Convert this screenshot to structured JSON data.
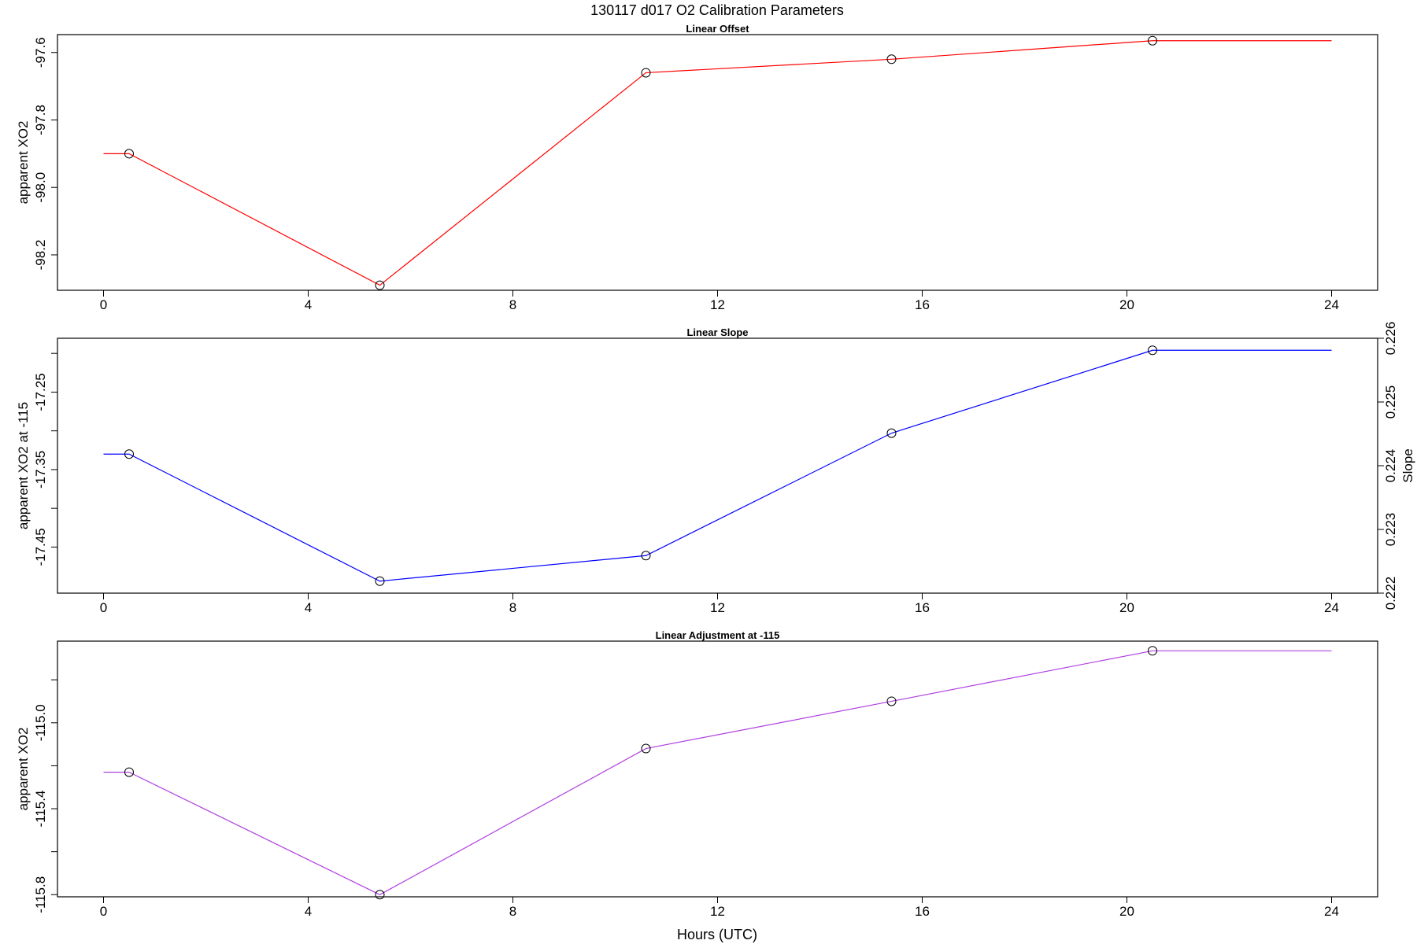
{
  "figure": {
    "title": "130117   d017   O2 Calibration Parameters",
    "xlabel": "Hours (UTC)"
  },
  "chart_data": [
    {
      "type": "line",
      "title": "Linear Offset",
      "ylabel": "apparent XO2",
      "color": "#ff0000",
      "x_ticks": [
        0,
        4,
        8,
        12,
        16,
        20,
        24
      ],
      "xlim": [
        -0.9,
        24.9
      ],
      "ylim": [
        -98.305,
        -97.547
      ],
      "y_ticks": [
        -98.2,
        -98.0,
        -97.8,
        -97.6
      ],
      "y_tick_labels": [
        "-98.2",
        "-98.0",
        "-97.8",
        "-97.6"
      ],
      "x": [
        0.5,
        5.4,
        10.6,
        15.4,
        20.5
      ],
      "values": [
        -97.9,
        -98.29,
        -97.66,
        -97.62,
        -97.565
      ],
      "line_x": [
        0,
        0.5,
        5.4,
        10.6,
        15.4,
        20.5,
        24
      ],
      "line_values": [
        -97.9,
        -97.9,
        -98.29,
        -97.66,
        -97.62,
        -97.565,
        -97.565
      ]
    },
    {
      "type": "line",
      "title": "Linear Slope",
      "ylabel": "apparent XO2 at -115",
      "y2label": "Slope",
      "color": "#0000ff",
      "x_ticks": [
        0,
        4,
        8,
        12,
        16,
        20,
        24
      ],
      "xlim": [
        -0.9,
        24.9
      ],
      "ylim": [
        -17.5095,
        -17.1805
      ],
      "y_ticks": [
        -17.45,
        -17.35,
        -17.25
      ],
      "y_tick_labels": [
        "-17.45",
        "-17.35",
        "-17.25"
      ],
      "y_minor_ticks": [
        -17.4,
        -17.3,
        -17.2
      ],
      "y2lim": [
        0.222,
        0.226
      ],
      "y2_ticks": [
        0.222,
        0.223,
        0.224,
        0.225,
        0.226
      ],
      "y2_tick_labels": [
        "0.222",
        "0.223",
        "0.224",
        "0.225",
        "0.226"
      ],
      "x": [
        0.5,
        5.4,
        10.6,
        15.4,
        20.5
      ],
      "values": [
        -17.33,
        -17.494,
        -17.461,
        -17.303,
        -17.196
      ],
      "line_x": [
        0,
        0.5,
        5.4,
        10.6,
        15.4,
        20.5,
        24
      ],
      "line_values": [
        -17.33,
        -17.33,
        -17.494,
        -17.461,
        -17.303,
        -17.196,
        -17.196
      ]
    },
    {
      "type": "line",
      "title": "Linear Adjustment at -115",
      "ylabel": "apparent XO2",
      "color": "#b040e0",
      "x_ticks": [
        0,
        4,
        8,
        12,
        16,
        20,
        24
      ],
      "xlim": [
        -0.9,
        24.9
      ],
      "ylim": [
        -115.81,
        -114.62
      ],
      "y_ticks": [
        -115.8,
        -115.4,
        -115.0
      ],
      "y_tick_labels": [
        "-115.8",
        "-115.4",
        "-115.0"
      ],
      "y_minor_ticks": [
        -115.6,
        -115.2,
        -114.8
      ],
      "x": [
        0.5,
        5.4,
        10.6,
        15.4,
        20.5
      ],
      "values": [
        -115.23,
        -115.8,
        -115.12,
        -114.9,
        -114.665
      ],
      "line_x": [
        0,
        0.5,
        5.4,
        10.6,
        15.4,
        20.5,
        24
      ],
      "line_values": [
        -115.23,
        -115.23,
        -115.8,
        -115.12,
        -114.9,
        -114.665,
        -114.665
      ]
    }
  ]
}
